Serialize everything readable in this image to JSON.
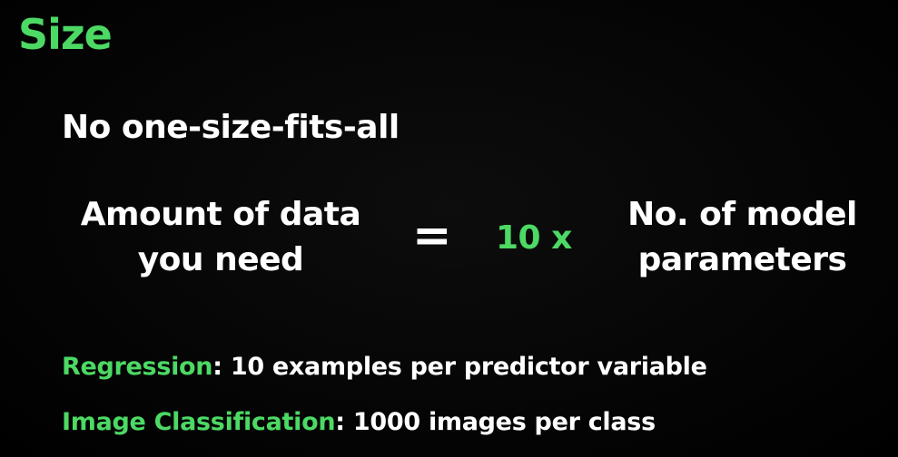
{
  "slide": {
    "title": "Size",
    "subtitle": "No one-size-fits-all",
    "equation": {
      "lhs_line1": "Amount of data",
      "lhs_line2": "you need",
      "equals": "=",
      "factor": "10 x",
      "rhs_line1": "No. of model",
      "rhs_line2": "parameters"
    },
    "rules": [
      {
        "term": "Regression",
        "text": ": 10 examples per predictor variable"
      },
      {
        "term": "Image Classification",
        "text": ": 1000 images per class"
      }
    ],
    "colors": {
      "accent": "#4cd964",
      "text": "#ffffff",
      "background": "#000000"
    }
  }
}
